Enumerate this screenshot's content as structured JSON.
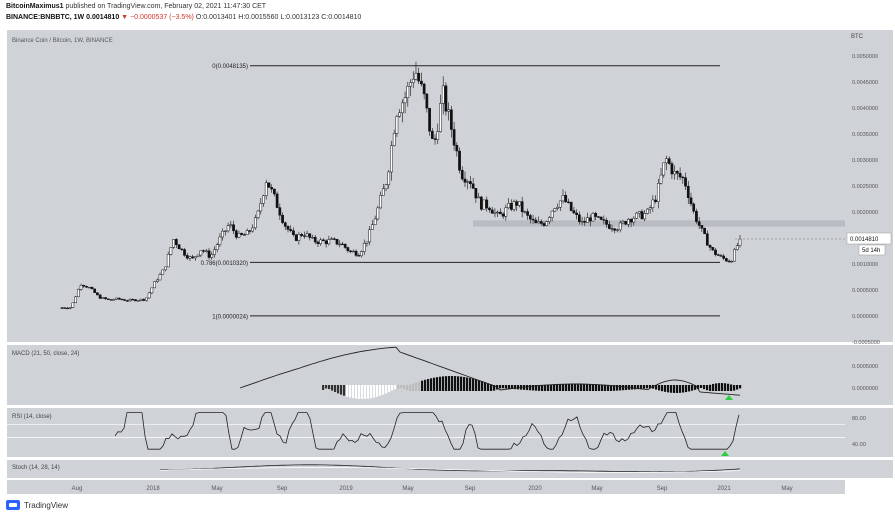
{
  "header": {
    "author": "BitcoinMaximus1",
    "published": "published on TradingView.com, February 02, 2021 11:47:30 CET",
    "symbol": "BINANCE:BNBBTC, 1W",
    "last": "0.0014810",
    "change": "▼ −0.0000537 (−3.5%)",
    "o": "O:0.0013401",
    "h": "H:0.0015560",
    "l": "L:0.0013123",
    "c": "C:0.0014810"
  },
  "branding": {
    "name": "TradingView"
  },
  "colors": {
    "panel_bg": "#cfd3d8",
    "candle": "#111111",
    "line": "#222222",
    "zone": "#b5b9bf",
    "hist_up": "#ffffff",
    "hist_down": "#111111",
    "signal": "#2ecc40",
    "label_bg": "#ffffff"
  },
  "chart_data": {
    "type": "candlestick",
    "title": "Binance Coin / Bitcoin, 1W, BINANCE",
    "currency_label": "BTC",
    "price_axis": {
      "min": -0.0005,
      "max": 0.0055,
      "ticks": [
        "0.0055000",
        "0.0050000",
        "0.0045000",
        "0.0040000",
        "0.0035000",
        "0.0030000",
        "0.0025000",
        "0.0020000",
        "0.0015000",
        "0.0010000",
        "0.0005000",
        "0.0000000",
        "-0.0005000"
      ]
    },
    "time_labels": [
      "Aug",
      "2018",
      "May",
      "Sep",
      "2019",
      "May",
      "Sep",
      "2020",
      "May",
      "Sep",
      "2021",
      "May"
    ],
    "last_price_label": "0.0014810",
    "countdown_label": "5d 14h",
    "fibonacci": [
      {
        "label": "0(0.0048135)",
        "price": 0.0048135
      },
      {
        "label": "0.786(0.0010320)",
        "price": 0.001032
      },
      {
        "label": "1(0.0000024)",
        "price": 2.4e-06
      }
    ],
    "support_zone": {
      "low": 0.00172,
      "high": 0.00184
    },
    "close_path": [
      0.00016,
      0.00017,
      0.00062,
      0.00054,
      0.00036,
      0.00031,
      0.00033,
      0.0003,
      0.00031,
      0.00032,
      0.00065,
      0.0009,
      0.00148,
      0.00124,
      0.00108,
      0.00129,
      0.00114,
      0.00148,
      0.00176,
      0.00152,
      0.00158,
      0.00188,
      0.00263,
      0.00221,
      0.00176,
      0.00148,
      0.0016,
      0.00145,
      0.00143,
      0.00144,
      0.0014,
      0.00124,
      0.00121,
      0.00152,
      0.00205,
      0.00265,
      0.00395,
      0.00423,
      0.00475,
      0.00418,
      0.00322,
      0.00428,
      0.00356,
      0.00275,
      0.0026,
      0.00215,
      0.00212,
      0.0019,
      0.00207,
      0.00218,
      0.00192,
      0.00176,
      0.0018,
      0.00212,
      0.00226,
      0.00198,
      0.00178,
      0.00191,
      0.00181,
      0.00174,
      0.00171,
      0.00188,
      0.00192,
      0.00197,
      0.00231,
      0.00303,
      0.00272,
      0.00263,
      0.002,
      0.00158,
      0.00125,
      0.00112,
      0.00105,
      0.00148
    ],
    "macd_label": "MACD (21, 50, close, 24)",
    "macd_axis": [
      "0.0005000",
      "0.0000000"
    ],
    "rsi_label": "RSI (14, close)",
    "rsi_axis": [
      "80.00",
      "40.00"
    ],
    "rsi_bands": [
      70,
      50
    ],
    "stoch_label": "Stoch (14, 28, 14)"
  }
}
